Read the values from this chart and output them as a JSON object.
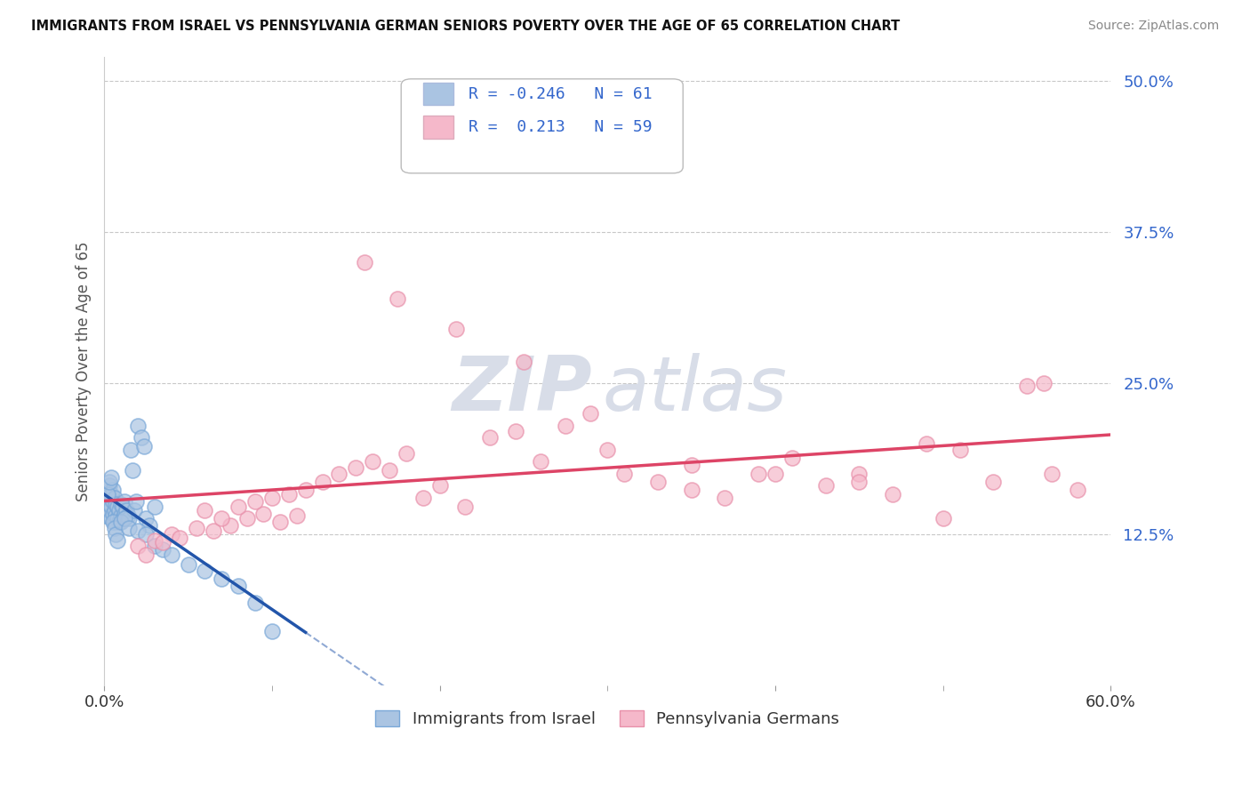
{
  "title": "IMMIGRANTS FROM ISRAEL VS PENNSYLVANIA GERMAN SENIORS POVERTY OVER THE AGE OF 65 CORRELATION CHART",
  "source": "Source: ZipAtlas.com",
  "ylabel": "Seniors Poverty Over the Age of 65",
  "xmin": 0.0,
  "xmax": 0.6,
  "ymin": 0.0,
  "ymax": 0.52,
  "yticks": [
    0.0,
    0.125,
    0.25,
    0.375,
    0.5
  ],
  "ytick_labels": [
    "",
    "12.5%",
    "25.0%",
    "37.5%",
    "50.0%"
  ],
  "grid_color": "#c8c8c8",
  "background_color": "#ffffff",
  "series1_label": "Immigrants from Israel",
  "series2_label": "Pennsylvania Germans",
  "series1_color": "#aac4e2",
  "series2_color": "#f5b8ca",
  "series1_edge_color": "#7aa8d8",
  "series2_edge_color": "#e890aa",
  "series1_line_color": "#2255aa",
  "series2_line_color": "#dd4466",
  "legend_R1": "-0.246",
  "legend_N1": "61",
  "legend_R2": "0.213",
  "legend_N2": "59",
  "legend_text_color": "#3366cc",
  "series1_x": [
    0.001,
    0.002,
    0.002,
    0.003,
    0.003,
    0.003,
    0.004,
    0.004,
    0.004,
    0.005,
    0.005,
    0.005,
    0.006,
    0.006,
    0.006,
    0.007,
    0.007,
    0.008,
    0.008,
    0.009,
    0.009,
    0.01,
    0.01,
    0.011,
    0.011,
    0.012,
    0.012,
    0.013,
    0.014,
    0.015,
    0.016,
    0.017,
    0.018,
    0.019,
    0.02,
    0.022,
    0.024,
    0.025,
    0.027,
    0.03,
    0.002,
    0.003,
    0.004,
    0.005,
    0.006,
    0.007,
    0.008,
    0.01,
    0.012,
    0.015,
    0.02,
    0.025,
    0.03,
    0.035,
    0.04,
    0.05,
    0.06,
    0.07,
    0.08,
    0.09,
    0.1
  ],
  "series1_y": [
    0.14,
    0.155,
    0.16,
    0.145,
    0.15,
    0.165,
    0.138,
    0.148,
    0.158,
    0.142,
    0.152,
    0.162,
    0.135,
    0.145,
    0.155,
    0.14,
    0.15,
    0.138,
    0.148,
    0.135,
    0.145,
    0.14,
    0.15,
    0.138,
    0.148,
    0.142,
    0.152,
    0.145,
    0.14,
    0.138,
    0.195,
    0.178,
    0.145,
    0.152,
    0.215,
    0.205,
    0.198,
    0.138,
    0.132,
    0.148,
    0.158,
    0.168,
    0.172,
    0.135,
    0.13,
    0.125,
    0.12,
    0.135,
    0.138,
    0.13,
    0.128,
    0.125,
    0.115,
    0.112,
    0.108,
    0.1,
    0.095,
    0.088,
    0.082,
    0.068,
    0.045
  ],
  "series2_x": [
    0.02,
    0.03,
    0.04,
    0.055,
    0.065,
    0.075,
    0.085,
    0.095,
    0.105,
    0.115,
    0.025,
    0.035,
    0.045,
    0.06,
    0.07,
    0.08,
    0.09,
    0.1,
    0.11,
    0.12,
    0.13,
    0.14,
    0.15,
    0.16,
    0.17,
    0.18,
    0.19,
    0.2,
    0.215,
    0.23,
    0.245,
    0.26,
    0.275,
    0.29,
    0.31,
    0.33,
    0.35,
    0.37,
    0.39,
    0.41,
    0.43,
    0.45,
    0.47,
    0.49,
    0.51,
    0.53,
    0.55,
    0.565,
    0.58,
    0.155,
    0.175,
    0.21,
    0.25,
    0.3,
    0.35,
    0.4,
    0.45,
    0.5,
    0.56
  ],
  "series2_y": [
    0.115,
    0.12,
    0.125,
    0.13,
    0.128,
    0.132,
    0.138,
    0.142,
    0.135,
    0.14,
    0.108,
    0.118,
    0.122,
    0.145,
    0.138,
    0.148,
    0.152,
    0.155,
    0.158,
    0.162,
    0.168,
    0.175,
    0.18,
    0.185,
    0.178,
    0.192,
    0.155,
    0.165,
    0.148,
    0.205,
    0.21,
    0.185,
    0.215,
    0.225,
    0.175,
    0.168,
    0.162,
    0.155,
    0.175,
    0.188,
    0.165,
    0.175,
    0.158,
    0.2,
    0.195,
    0.168,
    0.248,
    0.175,
    0.162,
    0.35,
    0.32,
    0.295,
    0.268,
    0.195,
    0.182,
    0.175,
    0.168,
    0.138,
    0.25
  ]
}
